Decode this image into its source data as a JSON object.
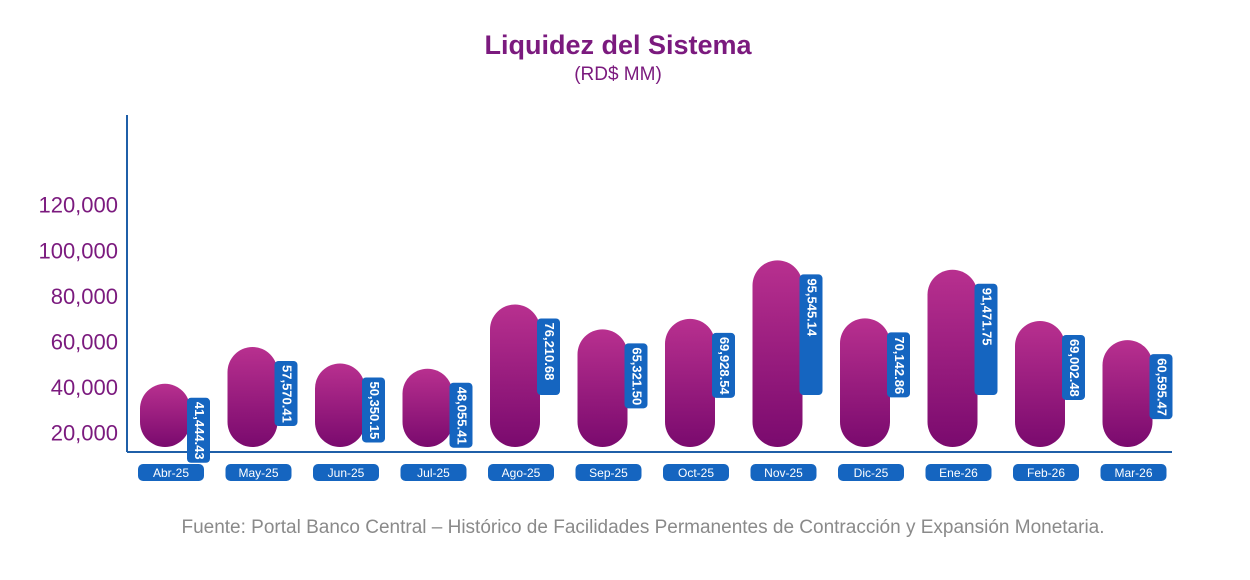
{
  "chart_data": {
    "type": "bar",
    "title": "Liquidez del Sistema",
    "subtitle": "(RD$ MM)",
    "source": "Fuente: Portal Banco Central – Histórico de Facilidades Permanentes de Contracción y Expansión Monetaria.",
    "categories": [
      "Abr-25",
      "May-25",
      "Jun-25",
      "Jul-25",
      "Ago-25",
      "Sep-25",
      "Oct-25",
      "Nov-25",
      "Dic-25",
      "Ene-26",
      "Feb-26",
      "Mar-26"
    ],
    "values": [
      41444.43,
      57570.41,
      50350.15,
      48055.41,
      76210.68,
      65321.5,
      69928.54,
      95545.14,
      70142.86,
      91471.75,
      69002.48,
      60595.47
    ],
    "value_labels": [
      "41,444.43",
      "57,570.41",
      "50,350.15",
      "48,055.41",
      "76,210.68",
      "65,321.50",
      "69,928.54",
      "95,545.14",
      "70,142.86",
      "91,471.75",
      "69,002.48",
      "60,595.47"
    ],
    "yticks": [
      20000,
      40000,
      60000,
      80000,
      100000,
      120000
    ],
    "ytick_labels": [
      "20,000",
      "40,000",
      "60,000",
      "80,000",
      "100,000",
      "120,000"
    ],
    "ylim": [
      0,
      140000
    ],
    "xlabel": "",
    "ylabel": "",
    "grid": false,
    "legend": "none",
    "colors": {
      "bar_top": "#b8308f",
      "bar_bottom": "#7a0a6e",
      "label_box": "#1565c0",
      "axis": "#1f5fa8",
      "title": "#7b1a7e",
      "tick_text": "#7b1a7e",
      "source_text": "#8a8a8a"
    }
  }
}
